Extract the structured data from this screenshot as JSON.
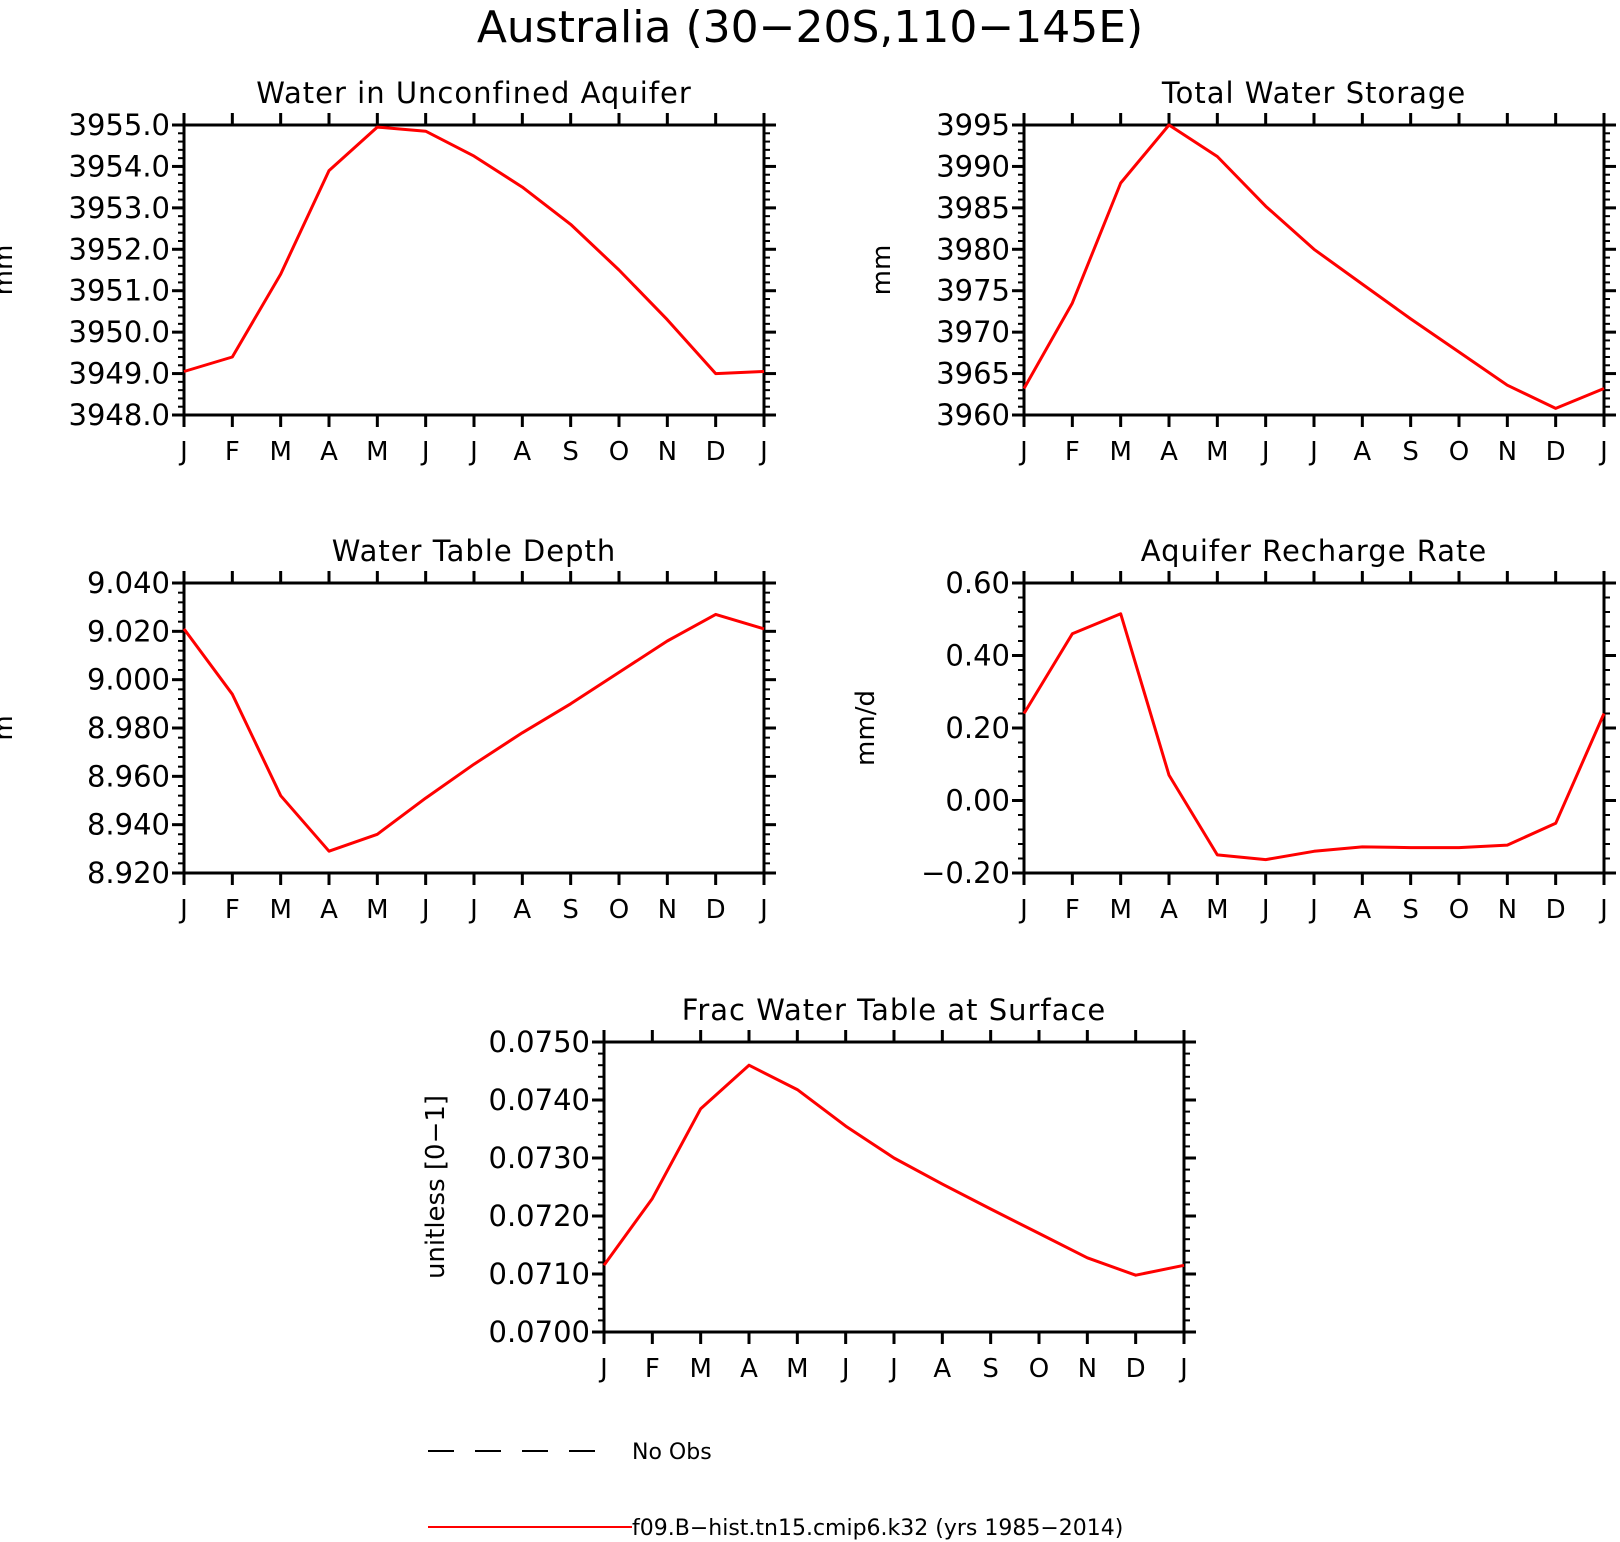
{
  "figure": {
    "title": "Australia (30−20S,110−145E)"
  },
  "colors": {
    "model": "#ff0000",
    "obs": "#000000"
  },
  "legend": [
    {
      "label": "No Obs",
      "style": "dashed",
      "color": "#000000"
    },
    {
      "label": "f09.B−hist.tn15.cmip6.k32 (yrs 1985−2014)",
      "style": "solid",
      "color": "#ff0000"
    }
  ],
  "chart_data": [
    {
      "type": "line",
      "title": "Water in Unconfined Aquifer",
      "ylabel": "mm",
      "xlabel": "",
      "categories": [
        "J",
        "F",
        "M",
        "A",
        "M",
        "J",
        "J",
        "A",
        "S",
        "O",
        "N",
        "D",
        "J"
      ],
      "ylim": [
        3948.0,
        3955.0
      ],
      "yticks": [
        "3948.0",
        "3949.0",
        "3950.0",
        "3951.0",
        "3952.0",
        "3953.0",
        "3954.0",
        "3955.0"
      ],
      "ytick_values": [
        3948,
        3949,
        3950,
        3951,
        3952,
        3953,
        3954,
        3955
      ],
      "series": [
        {
          "name": "f09.B−hist.tn15.cmip6.k32 (yrs 1985−2014)",
          "values": [
            3949.05,
            3949.4,
            3951.4,
            3953.9,
            3954.95,
            3954.85,
            3954.25,
            3953.5,
            3952.6,
            3951.5,
            3950.3,
            3949.0,
            3949.05
          ]
        }
      ]
    },
    {
      "type": "line",
      "title": "Total Water Storage",
      "ylabel": "mm",
      "xlabel": "",
      "categories": [
        "J",
        "F",
        "M",
        "A",
        "M",
        "J",
        "J",
        "A",
        "S",
        "O",
        "N",
        "D",
        "J"
      ],
      "ylim": [
        3960,
        3995
      ],
      "yticks": [
        "3960",
        "3965",
        "3970",
        "3975",
        "3980",
        "3985",
        "3990",
        "3995"
      ],
      "ytick_values": [
        3960,
        3965,
        3970,
        3975,
        3980,
        3985,
        3990,
        3995
      ],
      "series": [
        {
          "name": "f09.B−hist.tn15.cmip6.k32 (yrs 1985−2014)",
          "values": [
            3963.2,
            3973.5,
            3988.0,
            3995.0,
            3991.2,
            3985.2,
            3980.0,
            3975.8,
            3971.6,
            3967.6,
            3963.6,
            3960.8,
            3963.2
          ]
        }
      ]
    },
    {
      "type": "line",
      "title": "Water Table Depth",
      "ylabel": "m",
      "xlabel": "",
      "categories": [
        "J",
        "F",
        "M",
        "A",
        "M",
        "J",
        "J",
        "A",
        "S",
        "O",
        "N",
        "D",
        "J"
      ],
      "ylim": [
        8.92,
        9.04
      ],
      "yticks": [
        "8.920",
        "8.940",
        "8.960",
        "8.980",
        "9.000",
        "9.020",
        "9.040"
      ],
      "ytick_values": [
        8.92,
        8.94,
        8.96,
        8.98,
        9.0,
        9.02,
        9.04
      ],
      "series": [
        {
          "name": "f09.B−hist.tn15.cmip6.k32 (yrs 1985−2014)",
          "values": [
            9.021,
            8.994,
            8.952,
            8.929,
            8.936,
            8.951,
            8.965,
            8.978,
            8.99,
            9.003,
            9.016,
            9.027,
            9.021
          ]
        }
      ]
    },
    {
      "type": "line",
      "title": "Aquifer Recharge Rate",
      "ylabel": "mm/d",
      "xlabel": "",
      "categories": [
        "J",
        "F",
        "M",
        "A",
        "M",
        "J",
        "J",
        "A",
        "S",
        "O",
        "N",
        "D",
        "J"
      ],
      "ylim": [
        -0.2,
        0.6
      ],
      "yticks": [
        "−0.20",
        "0.00",
        "0.20",
        "0.40",
        "0.60"
      ],
      "ytick_values": [
        -0.2,
        0.0,
        0.2,
        0.4,
        0.6
      ],
      "series": [
        {
          "name": "f09.B−hist.tn15.cmip6.k32 (yrs 1985−2014)",
          "values": [
            0.24,
            0.46,
            0.515,
            0.07,
            -0.15,
            -0.163,
            -0.14,
            -0.128,
            -0.13,
            -0.13,
            -0.123,
            -0.063,
            0.24
          ]
        }
      ]
    },
    {
      "type": "line",
      "title": "Frac Water Table at Surface",
      "ylabel": "unitless [0−1]",
      "xlabel": "",
      "categories": [
        "J",
        "F",
        "M",
        "A",
        "M",
        "J",
        "J",
        "A",
        "S",
        "O",
        "N",
        "D",
        "J"
      ],
      "ylim": [
        0.07,
        0.075
      ],
      "yticks": [
        "0.0700",
        "0.0710",
        "0.0720",
        "0.0730",
        "0.0740",
        "0.0750"
      ],
      "ytick_values": [
        0.07,
        0.071,
        0.072,
        0.073,
        0.074,
        0.075
      ],
      "series": [
        {
          "name": "f09.B−hist.tn15.cmip6.k32 (yrs 1985−2014)",
          "values": [
            0.07115,
            0.0723,
            0.07385,
            0.0746,
            0.07418,
            0.07355,
            0.073,
            0.07255,
            0.07212,
            0.0717,
            0.07128,
            0.07098,
            0.07115
          ]
        }
      ]
    }
  ]
}
